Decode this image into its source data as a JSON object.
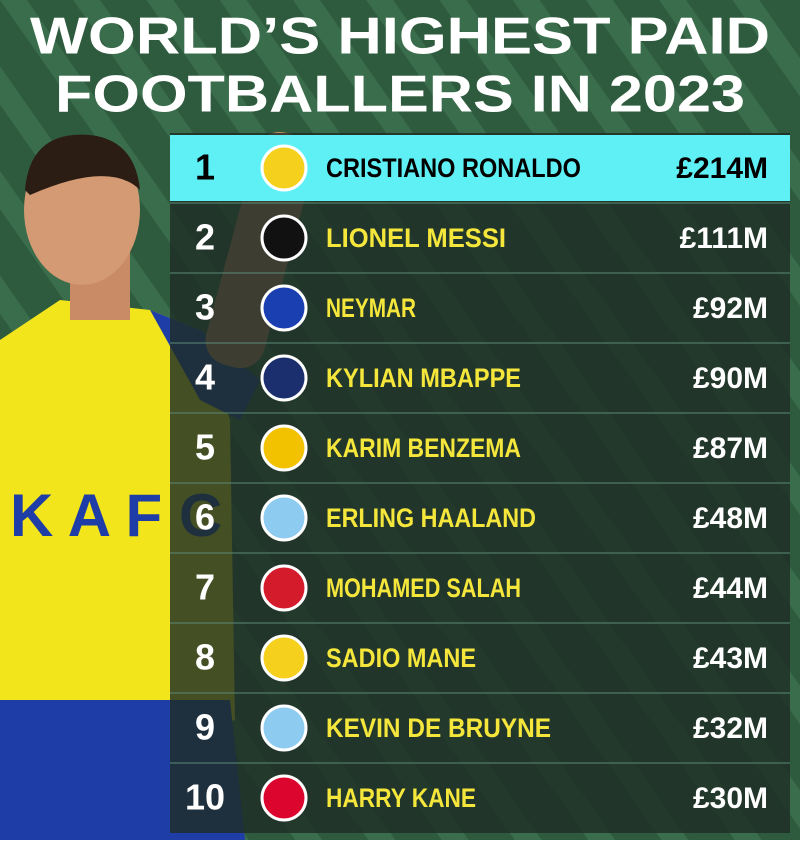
{
  "header": {
    "title_lines": [
      "WORLD’S HIGHEST PAID",
      "FOOTBALLERS IN 2023"
    ]
  },
  "table": {
    "rows": [
      [
        "1",
        "CRISTIANO RONALDO",
        "£214M"
      ],
      [
        "2",
        "LIONEL MESSI",
        "£111M"
      ],
      [
        "3",
        "NEYMAR",
        "£92M"
      ],
      [
        "4",
        "KYLIAN MBAPPE",
        "£90M"
      ],
      [
        "5",
        "KARIM BENZEMA",
        "£87M"
      ],
      [
        "6",
        "ERLING HAALAND",
        "£48M"
      ],
      [
        "7",
        "MOHAMED SALAH",
        "£44M"
      ],
      [
        "8",
        "SADIO MANE",
        "£43M"
      ],
      [
        "9",
        "KEVIN DE BRUYNE",
        "£32M"
      ],
      [
        "10",
        "HARRY KANE",
        "£30M"
      ]
    ]
  }
}
